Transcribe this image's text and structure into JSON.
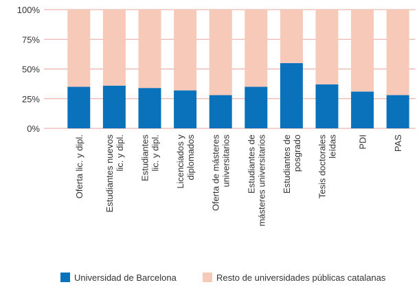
{
  "chart_data": {
    "type": "stacked_bar",
    "categories": [
      [
        "Oferta lic. y dipl."
      ],
      [
        "Estudiantes nuevos",
        "lic. y dipl."
      ],
      [
        "Estudiantes",
        "lic. y dipl."
      ],
      [
        "Licenciados y",
        "diplomados"
      ],
      [
        "Oferta de másteres",
        "universitarios"
      ],
      [
        "Estudiantes de",
        "másteres universitarios"
      ],
      [
        "Estudiantes de",
        "posgrado"
      ],
      [
        "Tesis doctorales",
        "leídas"
      ],
      [
        "PDI"
      ],
      [
        "PAS"
      ]
    ],
    "series": [
      {
        "name": "Universidad de Barcelona",
        "color": "#0a72ba",
        "values": [
          35,
          36,
          34,
          32,
          28,
          35,
          55,
          37,
          31,
          28
        ]
      },
      {
        "name": "Resto de universidades públicas catalanas",
        "color": "#f6c9b8",
        "values": [
          65,
          64,
          66,
          68,
          72,
          65,
          45,
          63,
          69,
          72
        ]
      }
    ],
    "ylim": [
      0,
      100
    ],
    "yticks": [
      {
        "value": 0,
        "label": "0%"
      },
      {
        "value": 25,
        "label": "25%"
      },
      {
        "value": 50,
        "label": "50%"
      },
      {
        "value": 75,
        "label": "75%"
      },
      {
        "value": 100,
        "label": "100%"
      }
    ],
    "grid": true,
    "legend": "bottom"
  }
}
